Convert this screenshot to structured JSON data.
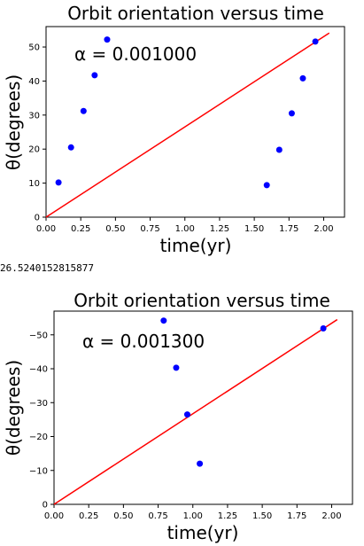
{
  "output_text": "26.5240152815877",
  "chart_data": [
    {
      "type": "scatter",
      "title": "Orbit orientation versus time",
      "xlabel": "time(yr)",
      "ylabel": "θ(degrees)",
      "annotation": "α = 0.001000",
      "xlim": [
        0.0,
        2.15
      ],
      "ylim": [
        0,
        56
      ],
      "xticks": [
        "0.00",
        "0.25",
        "0.50",
        "0.75",
        "1.00",
        "1.25",
        "1.50",
        "1.75",
        "2.00"
      ],
      "yticks": [
        "0",
        "10",
        "20",
        "30",
        "40",
        "50"
      ],
      "series": [
        {
          "kind": "points",
          "color": "#0000ff",
          "x": [
            0.09,
            0.18,
            0.27,
            0.35,
            0.44,
            1.59,
            1.68,
            1.77,
            1.85,
            1.94
          ],
          "y": [
            10.2,
            20.5,
            31.2,
            41.7,
            52.2,
            9.4,
            19.8,
            30.5,
            40.8,
            51.6
          ]
        },
        {
          "kind": "line",
          "color": "#ff0000",
          "x": [
            0.0,
            2.04
          ],
          "y": [
            0.0,
            54.1
          ]
        }
      ]
    },
    {
      "type": "scatter",
      "title": "Orbit orientation versus time",
      "xlabel": "time(yr)",
      "ylabel": "θ(degrees)",
      "annotation": "α = 0.001300",
      "xlim": [
        0.0,
        2.15
      ],
      "ylim": [
        0,
        57
      ],
      "xticks": [
        "0.00",
        "0.25",
        "0.50",
        "0.75",
        "1.00",
        "1.25",
        "1.50",
        "1.75",
        "2.00"
      ],
      "yticks": [
        "0",
        "−10",
        "−20",
        "−30",
        "−40",
        "−50"
      ],
      "series": [
        {
          "kind": "points",
          "color": "#0000ff",
          "x": [
            0.79,
            0.88,
            0.96,
            1.05,
            1.94
          ],
          "y": [
            54.2,
            40.3,
            26.5,
            12.0,
            51.9
          ]
        },
        {
          "kind": "line",
          "color": "#ff0000",
          "x": [
            0.0,
            2.04
          ],
          "y": [
            0.0,
            54.5
          ]
        }
      ]
    }
  ]
}
